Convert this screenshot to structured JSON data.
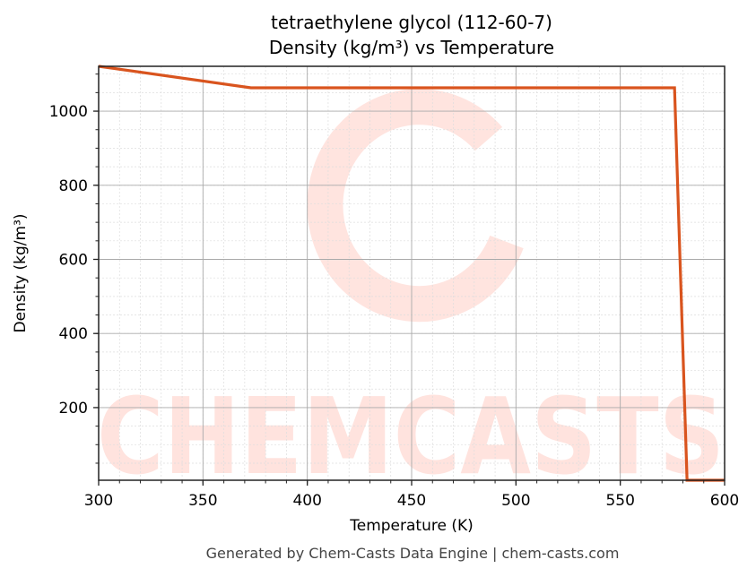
{
  "chart_data": {
    "type": "line",
    "title": "tetraethylene glycol (112-60-7)",
    "subtitle": "Density (kg/m³) vs Temperature",
    "xlabel": "Temperature (K)",
    "ylabel": "Density (kg/m³)",
    "xlim": [
      300,
      600
    ],
    "ylim": [
      4,
      1121
    ],
    "x_ticks": [
      300,
      350,
      400,
      450,
      500,
      550,
      600
    ],
    "y_ticks": [
      200,
      400,
      600,
      800,
      1000
    ],
    "x_minor_step": 10,
    "y_minor_step": 50,
    "grid": true,
    "legend": null,
    "series": [
      {
        "name": "Density",
        "color": "#d9541e",
        "x": [
          300,
          373,
          576,
          582,
          600
        ],
        "y": [
          1121,
          1063,
          1063,
          4,
          4
        ]
      }
    ],
    "watermark": "CHEMCASTS"
  },
  "footer": "Generated by Chem-Casts Data Engine | chem-casts.com"
}
